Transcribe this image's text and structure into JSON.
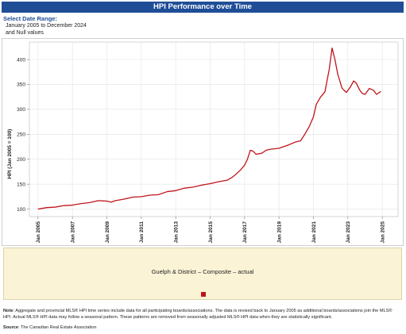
{
  "header": {
    "title": "HPI Performance over Time"
  },
  "range": {
    "label": "Select Date Range:",
    "line1": "January 2005 to December 2024",
    "line2": "and Null values"
  },
  "legend": {
    "series_label": "Guelph & District – Composite – actual"
  },
  "footer": {
    "note_label": "Note",
    "note_text": ": Aggregate and provincial MLS® HPI time series include data for all participating boards/associations. The data is revised back to January 2005 as additional boards/associations join the MLS® HPI. Actual MLS® HPI data may follow a seasonal pattern. These patterns are removed from seasonally adjusted MLS® HPI data when they are statistically significant.",
    "source_label": "Source",
    "source_text": ": The Canadian Real Estate Association"
  },
  "colors": {
    "series": "#c0141a",
    "header_bg": "#1f4e97",
    "legend_bg": "#fbf3d6"
  },
  "chart_data": {
    "type": "line",
    "title": "",
    "xlabel": "",
    "ylabel": "HPI (Jan 2005 = 100)",
    "ylim": [
      85,
      435
    ],
    "xlim": [
      "2004-07",
      "2025-12"
    ],
    "yticks": [
      100,
      150,
      200,
      250,
      300,
      350,
      400
    ],
    "xticks": [
      "Jan 2005",
      "Jan 2007",
      "Jan 2009",
      "Jan 2011",
      "Jan 2013",
      "Jan 2015",
      "Jan 2017",
      "Jan 2019",
      "Jan 2021",
      "Jan 2023",
      "Jan 2025"
    ],
    "grid": true,
    "legend_position": "bottom",
    "series": [
      {
        "name": "Guelph & District – Composite – actual",
        "points": [
          [
            "2005-01",
            100
          ],
          [
            "2005-07",
            103
          ],
          [
            "2006-01",
            104
          ],
          [
            "2006-07",
            107
          ],
          [
            "2007-01",
            108
          ],
          [
            "2007-07",
            111
          ],
          [
            "2008-01",
            113
          ],
          [
            "2008-07",
            117
          ],
          [
            "2009-01",
            116
          ],
          [
            "2009-04",
            114
          ],
          [
            "2009-07",
            117
          ],
          [
            "2010-01",
            120
          ],
          [
            "2010-07",
            124
          ],
          [
            "2011-01",
            125
          ],
          [
            "2011-07",
            128
          ],
          [
            "2012-01",
            129
          ],
          [
            "2012-07",
            135
          ],
          [
            "2013-01",
            137
          ],
          [
            "2013-07",
            142
          ],
          [
            "2014-01",
            144
          ],
          [
            "2014-07",
            148
          ],
          [
            "2015-01",
            151
          ],
          [
            "2015-07",
            155
          ],
          [
            "2016-01",
            158
          ],
          [
            "2016-04",
            163
          ],
          [
            "2016-07",
            170
          ],
          [
            "2016-10",
            178
          ],
          [
            "2017-01",
            188
          ],
          [
            "2017-03",
            200
          ],
          [
            "2017-05",
            218
          ],
          [
            "2017-07",
            216
          ],
          [
            "2017-09",
            210
          ],
          [
            "2018-01",
            212
          ],
          [
            "2018-04",
            218
          ],
          [
            "2018-07",
            220
          ],
          [
            "2019-01",
            222
          ],
          [
            "2019-07",
            228
          ],
          [
            "2020-01",
            235
          ],
          [
            "2020-04",
            237
          ],
          [
            "2020-07",
            250
          ],
          [
            "2020-10",
            265
          ],
          [
            "2021-01",
            285
          ],
          [
            "2021-03",
            310
          ],
          [
            "2021-06",
            325
          ],
          [
            "2021-09",
            335
          ],
          [
            "2021-12",
            380
          ],
          [
            "2022-02",
            423
          ],
          [
            "2022-04",
            400
          ],
          [
            "2022-06",
            370
          ],
          [
            "2022-09",
            342
          ],
          [
            "2022-12",
            334
          ],
          [
            "2023-03",
            346
          ],
          [
            "2023-05",
            357
          ],
          [
            "2023-07",
            352
          ],
          [
            "2023-09",
            340
          ],
          [
            "2023-11",
            332
          ],
          [
            "2024-01",
            330
          ],
          [
            "2024-04",
            342
          ],
          [
            "2024-07",
            338
          ],
          [
            "2024-09",
            330
          ],
          [
            "2024-12",
            336
          ]
        ]
      }
    ]
  }
}
